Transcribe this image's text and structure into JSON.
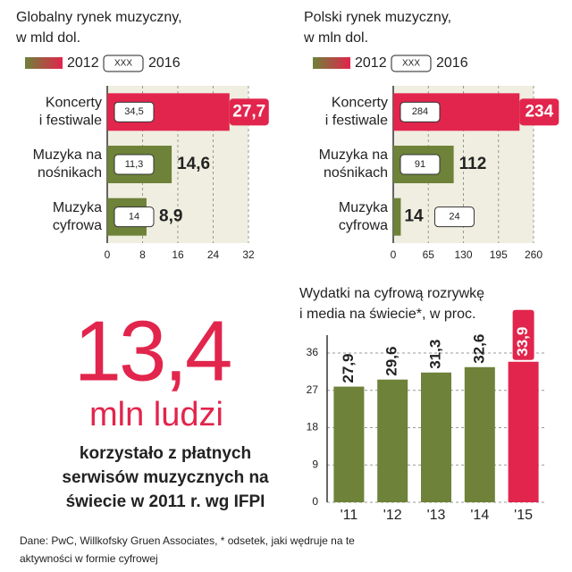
{
  "chart_data": [
    {
      "type": "hbar",
      "title": [
        "Globalny rynek muzyczny,",
        "w mld dol."
      ],
      "categories": [
        [
          "Koncerty",
          "i festiwale"
        ],
        [
          "Muzyka na",
          "nośnikach"
        ],
        [
          "Muzyka",
          "cyfrowa"
        ]
      ],
      "series": [
        {
          "name": "2012",
          "values": [
            27.7,
            14.6,
            8.9
          ],
          "value_labels": [
            "27,7",
            "14,6",
            "8,9"
          ],
          "colors": [
            "#e2254c",
            "#6e8239",
            "#6e8239"
          ]
        },
        {
          "name": "2016",
          "legend_box": "XXX",
          "values": [
            34.5,
            11.3,
            14
          ],
          "value_labels": [
            "34,5",
            "11,3",
            "14"
          ]
        }
      ],
      "accent_color": "#e2254c",
      "xlim": [
        0,
        32
      ],
      "xticks": [
        0,
        8,
        16,
        24,
        32
      ],
      "grid": true
    },
    {
      "type": "hbar",
      "title": [
        "Polski rynek muzyczny,",
        "w mln dol."
      ],
      "categories": [
        [
          "Koncerty",
          "i festiwale"
        ],
        [
          "Muzyka na",
          "nośnikach"
        ],
        [
          "Muzyka",
          "cyfrowa"
        ]
      ],
      "series": [
        {
          "name": "2012",
          "values": [
            234,
            112,
            14
          ],
          "colors": [
            "#e2254c",
            "#6e8239",
            "#6e8239"
          ]
        },
        {
          "name": "2016",
          "legend_box": "XXX",
          "values": [
            284,
            91,
            24
          ]
        }
      ],
      "accent_color": "#e2254c",
      "xlim": [
        0,
        260
      ],
      "xticks": [
        0,
        65,
        130,
        195,
        260
      ],
      "grid": true
    },
    {
      "type": "bar",
      "title": [
        "Wydatki na cyfrową rozrywkę",
        "i media na świecie*, w proc."
      ],
      "categories": [
        "'11",
        "'12",
        "'13",
        "'14",
        "'15"
      ],
      "values": [
        27.9,
        29.6,
        31.3,
        32.6,
        33.9
      ],
      "value_labels": [
        "27,9",
        "29,6",
        "31,3",
        "32,6",
        "33,9"
      ],
      "colors": [
        "#6e8239",
        "#6e8239",
        "#6e8239",
        "#6e8239",
        "#e2254c"
      ],
      "accent_color": "#e2254c",
      "ylim": [
        0,
        36
      ],
      "yticks": [
        0,
        9,
        18,
        27,
        36
      ],
      "grid": true
    }
  ],
  "highlight": {
    "number": "13,4",
    "unit": "mln ludzi",
    "text": [
      "korzystało z płatnych",
      "serwisów muzycznych na",
      "świecie w 2011 r. wg IFPI"
    ]
  },
  "source": [
    "Dane: PwC, Willkofsky Gruen Associates, *  odsetek,  jaki wędruje na te",
    "aktywności w formie cyfrowej"
  ]
}
